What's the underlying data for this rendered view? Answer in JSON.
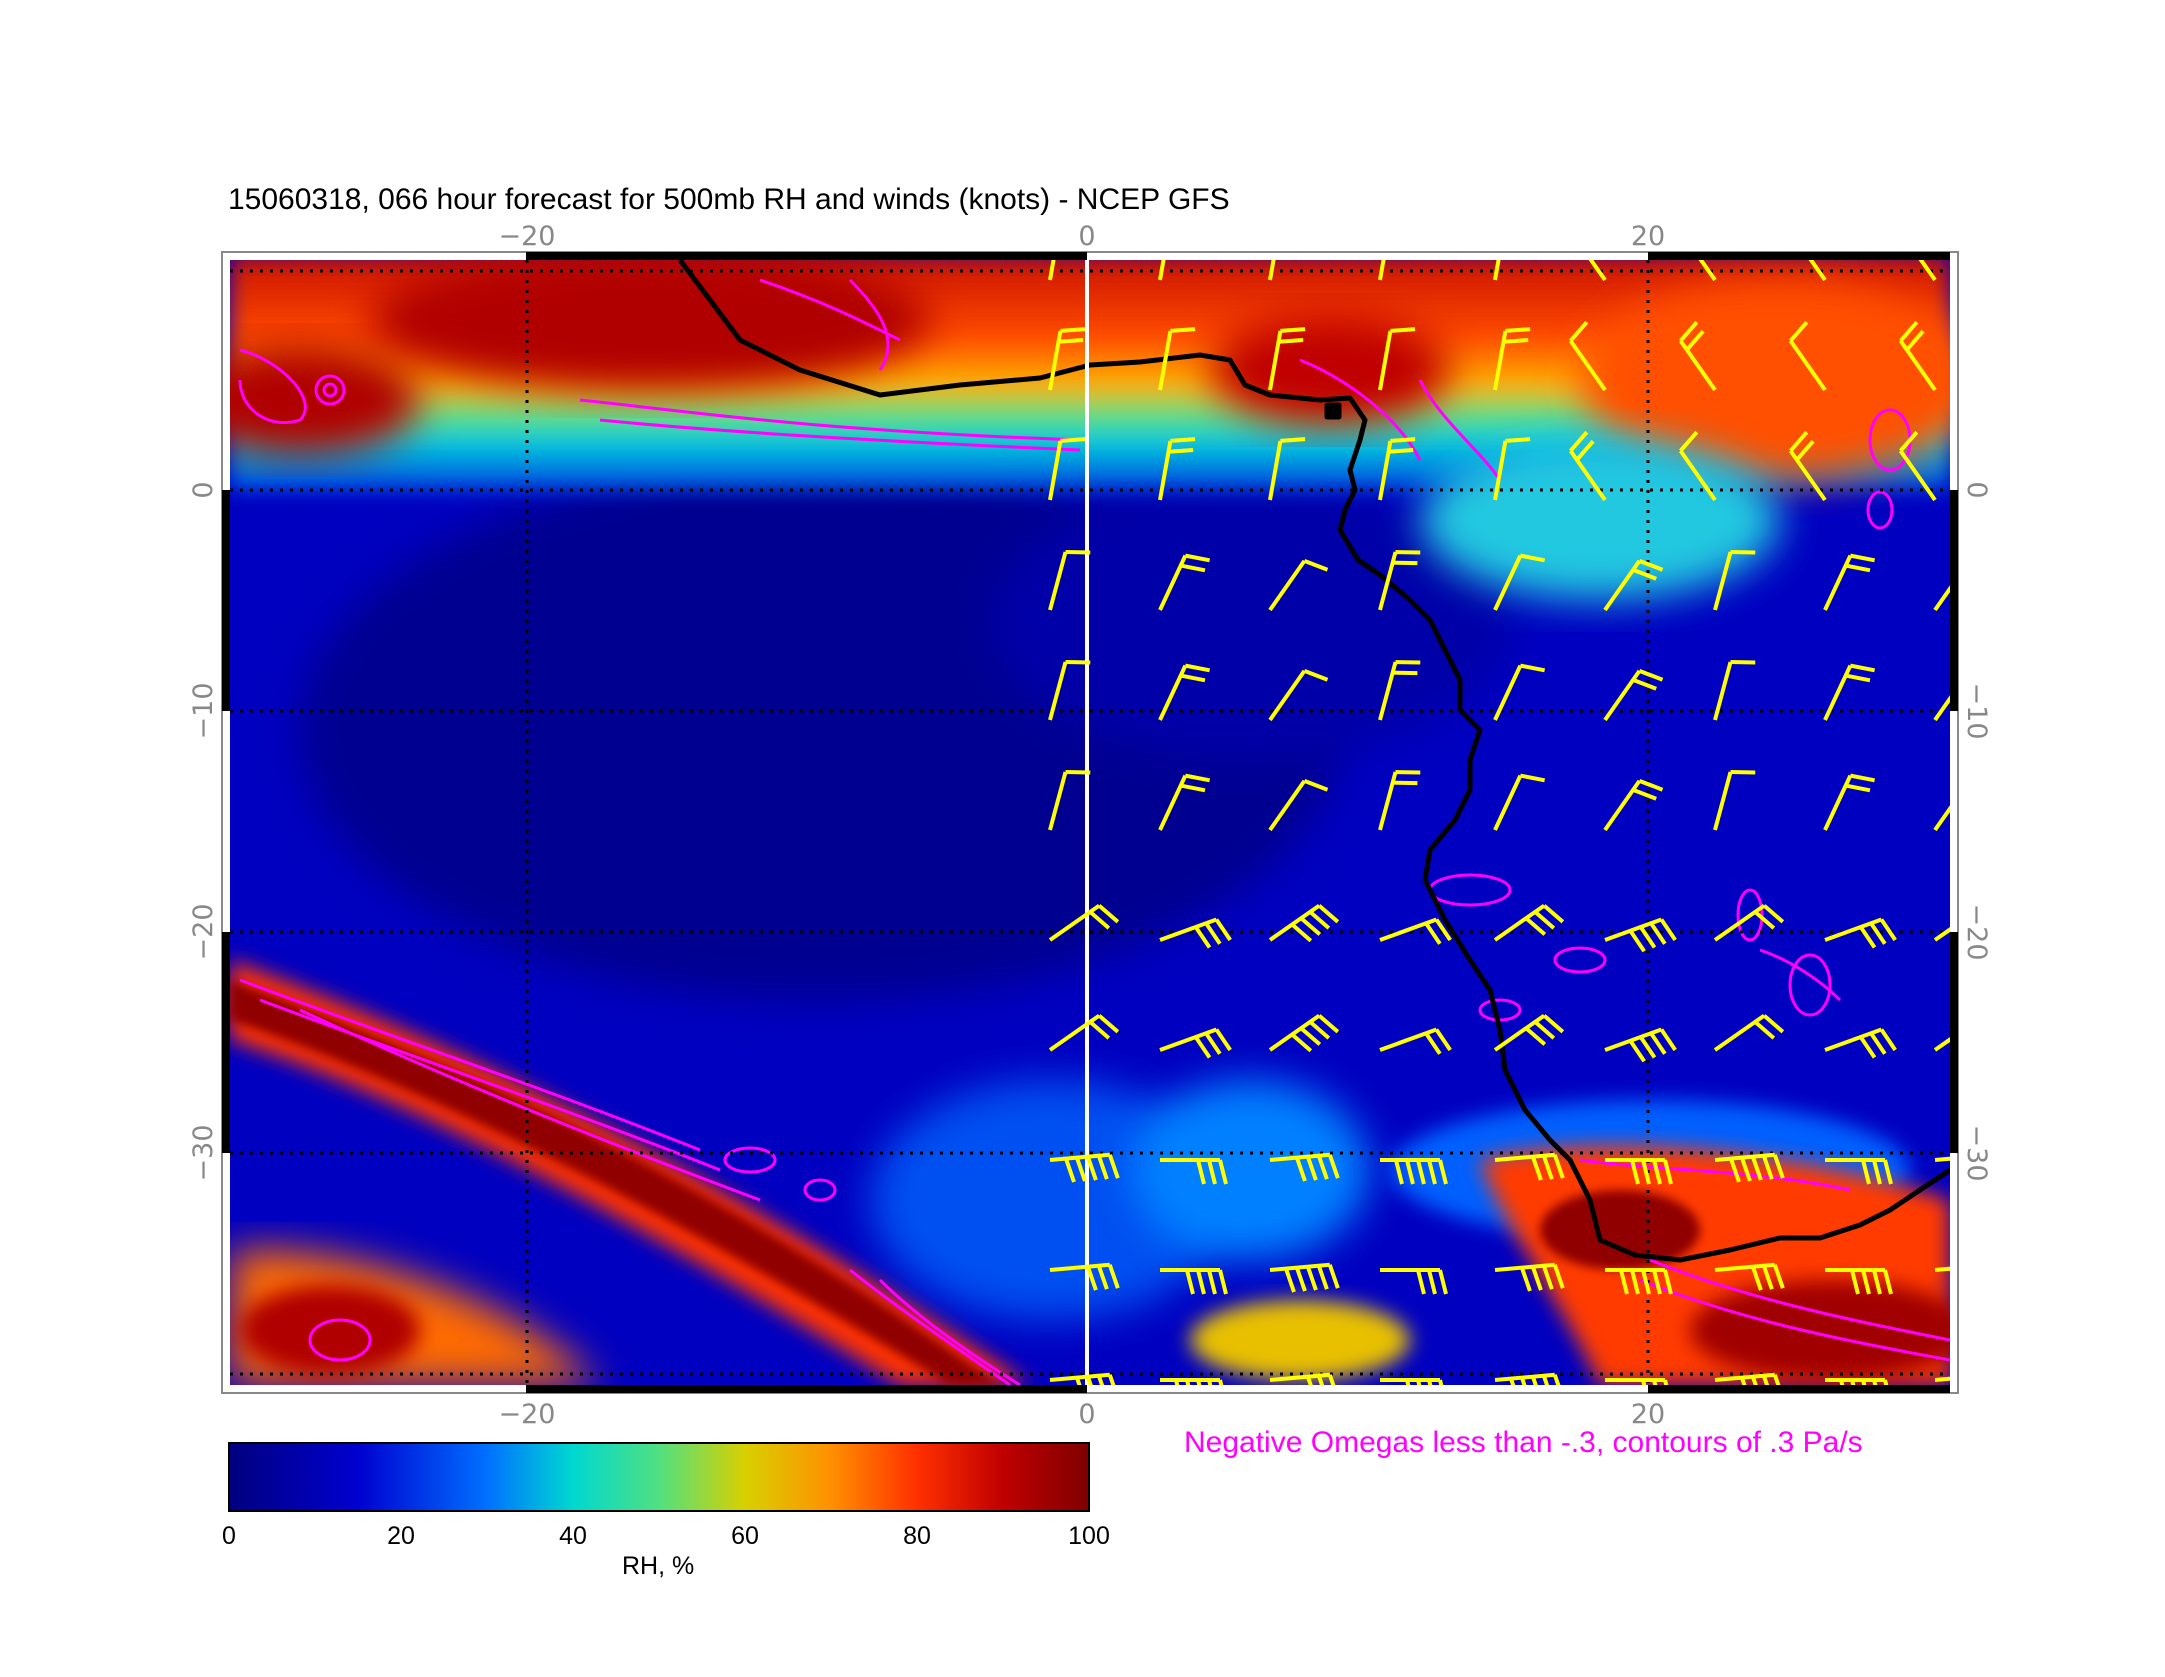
{
  "title": "15060318, 066 hour forecast for 500mb RH and winds (knots) - NCEP GFS",
  "omega_note": "Negative Omegas less than -.3, contours of .3 Pa/s",
  "axes": {
    "lon_ticks": [
      "−20",
      "0",
      "20"
    ],
    "lon_ticks_bottom": [
      "−20",
      "0",
      "20"
    ],
    "lat_ticks_left": [
      "0",
      "−10",
      "−20",
      "−30"
    ],
    "lat_ticks_right": [
      "0",
      "−10",
      "−20",
      "−30"
    ],
    "lon_range": [
      -30.5,
      30.5
    ],
    "lat_range": [
      -39.5,
      10.5
    ]
  },
  "colorbar": {
    "ticks": [
      "0",
      "20",
      "40",
      "60",
      "80",
      "100"
    ],
    "label": "RH, %",
    "range": [
      0,
      100
    ]
  },
  "colors": {
    "rh_low": "#00007f",
    "rh_mid": "#00d8d0",
    "rh_yellow": "#d8d000",
    "rh_high": "#7f0000",
    "omega_contour": "#ff00ff",
    "wind_barb": "#ffff00",
    "coastline": "#000000"
  }
}
